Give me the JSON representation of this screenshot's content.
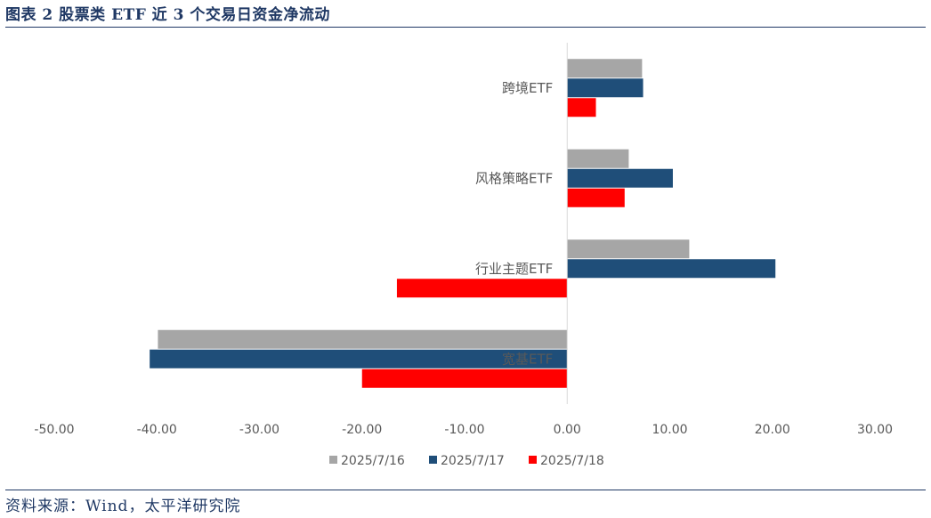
{
  "header": {
    "title": "图表 2 股票类 ETF 近 3 个交易日资金净流动"
  },
  "footer": {
    "source": "资料来源：Wind，太平洋研究院"
  },
  "colors": {
    "series": [
      "#A6A6A6",
      "#1F4E79",
      "#FF0000"
    ],
    "title": "#1F3864"
  },
  "chart_data": {
    "type": "bar",
    "orientation": "horizontal",
    "title": "图表 2 股票类 ETF 近 3 个交易日资金净流动",
    "xlabel": "",
    "ylabel": "",
    "xlim": [
      -50,
      30
    ],
    "x_ticks": [
      -50,
      -40,
      -30,
      -20,
      -10,
      0,
      10,
      20,
      30
    ],
    "x_tick_labels": [
      "-50.00",
      "-40.00",
      "-30.00",
      "-20.00",
      "-10.00",
      "0.00",
      "10.00",
      "20.00",
      "30.00"
    ],
    "grid": false,
    "legend_position": "bottom",
    "categories": [
      "跨境ETF",
      "风格策略ETF",
      "行业主题ETF",
      "宽基ETF"
    ],
    "series": [
      {
        "name": "2025/7/16",
        "values": [
          7.3,
          6.0,
          11.9,
          -39.9
        ]
      },
      {
        "name": "2025/7/17",
        "values": [
          7.4,
          10.3,
          20.3,
          -40.7
        ]
      },
      {
        "name": "2025/7/18",
        "values": [
          2.8,
          5.6,
          -16.6,
          -20.0
        ]
      }
    ]
  }
}
